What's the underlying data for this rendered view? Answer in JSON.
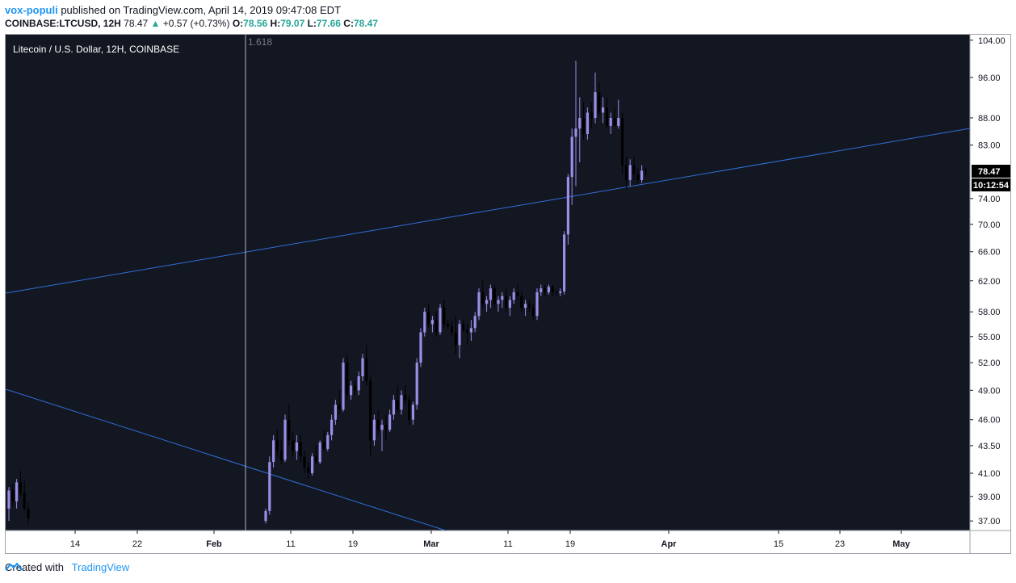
{
  "header": {
    "author": "vox-populi",
    "published_text": " published on TradingView.com, April 14, 2019 09:47:08 EDT",
    "symbol_text": "COINBASE:LTCUSD, 12H",
    "last_value": "78.47",
    "change_arrow": "▲",
    "change_text": "+0.57 (+0.73%)",
    "o_label": "O:",
    "o_value": "78.56",
    "h_label": "H:",
    "h_value": "79.07",
    "l_label": "L:",
    "l_value": "77.66",
    "c_label": "C:",
    "c_value": "78.47"
  },
  "footer": {
    "created_with": "Created with",
    "brand": "TradingView"
  },
  "colors": {
    "pane_bg": "#131722",
    "up_candle": "#9a8ee6",
    "down_candle": "#000000",
    "trendline": "#2f6fd6",
    "price_label_bg": "#000000"
  },
  "chart_data": {
    "type": "candlestick",
    "title": "Litecoin / U.S. Dollar, 12H, COINBASE",
    "y_scale": "log",
    "ylim": [
      36.5,
      104.5
    ],
    "y_ticks": [
      "104.00",
      "96.00",
      "88.00",
      "83.00",
      "78.47",
      "74.00",
      "70.00",
      "66.00",
      "62.00",
      "58.00",
      "55.00",
      "52.00",
      "49.00",
      "46.00",
      "43.50",
      "41.00",
      "39.00",
      "37.00"
    ],
    "last_price_label": "78.47",
    "countdown_label": "10:12:54",
    "x_ticks": [
      "14",
      "22",
      "Feb",
      "11",
      "19",
      "Mar",
      "11",
      "19",
      "Apr",
      "15",
      "23",
      "May"
    ],
    "fib_label": "1.618",
    "series": [
      {
        "values": [
          [
            38.0,
            39.8,
            37.0,
            39.5
          ],
          [
            39.5,
            40.0,
            38.2,
            38.6
          ],
          [
            38.6,
            40.5,
            38.0,
            40.2
          ],
          [
            40.2,
            41.2,
            39.0,
            39.3
          ],
          [
            39.3,
            40.3,
            37.8,
            38.0
          ],
          [
            38.0,
            38.5,
            36.8,
            37.2
          ],
          [
            37.0,
            38.0,
            36.8,
            37.8
          ],
          [
            37.8,
            42.5,
            37.5,
            42.0
          ],
          [
            42.0,
            44.5,
            41.5,
            44.0
          ],
          [
            44.0,
            45.0,
            42.5,
            43.0
          ],
          [
            43.0,
            44.0,
            41.8,
            42.2
          ],
          [
            42.2,
            46.5,
            42.0,
            46.0
          ],
          [
            46.0,
            47.5,
            43.5,
            44.0
          ],
          [
            44.0,
            44.8,
            42.5,
            43.0
          ],
          [
            43.0,
            44.5,
            42.2,
            43.8
          ],
          [
            43.8,
            44.5,
            42.0,
            42.5
          ],
          [
            42.5,
            43.0,
            41.0,
            41.5
          ],
          [
            41.5,
            42.0,
            40.5,
            41.0
          ],
          [
            41.0,
            42.8,
            40.8,
            42.5
          ],
          [
            42.5,
            43.5,
            41.8,
            42.0
          ],
          [
            42.0,
            44.0,
            41.8,
            43.8
          ],
          [
            43.8,
            45.0,
            43.0,
            43.2
          ],
          [
            43.2,
            44.8,
            43.0,
            44.5
          ],
          [
            44.5,
            46.5,
            44.0,
            46.0
          ],
          [
            46.0,
            48.0,
            45.5,
            47.5
          ],
          [
            47.5,
            49.0,
            46.5,
            47.0
          ],
          [
            47.0,
            52.5,
            46.8,
            52.0
          ],
          [
            52.0,
            53.0,
            48.0,
            48.5
          ],
          [
            48.5,
            50.0,
            48.0,
            49.5
          ],
          [
            49.5,
            50.0,
            48.5,
            49.0
          ],
          [
            49.0,
            51.0,
            48.5,
            50.5
          ],
          [
            50.5,
            53.0,
            50.0,
            52.5
          ],
          [
            52.5,
            54.0,
            49.5,
            50.0
          ],
          [
            50.0,
            50.5,
            42.5,
            44.0
          ],
          [
            44.0,
            46.5,
            43.5,
            46.0
          ],
          [
            46.0,
            47.0,
            44.5,
            45.0
          ],
          [
            45.0,
            46.0,
            43.0,
            45.5
          ],
          [
            45.5,
            46.5,
            44.0,
            45.0
          ],
          [
            45.0,
            47.0,
            44.8,
            46.5
          ],
          [
            46.5,
            48.5,
            46.0,
            48.0
          ],
          [
            48.0,
            49.5,
            46.8,
            47.0
          ],
          [
            47.0,
            49.0,
            46.5,
            48.5
          ],
          [
            48.5,
            49.5,
            47.5,
            48.0
          ],
          [
            48.0,
            48.5,
            45.5,
            46.0
          ],
          [
            46.0,
            47.8,
            45.5,
            47.5
          ],
          [
            47.5,
            52.5,
            47.0,
            52.0
          ],
          [
            52.0,
            56.0,
            51.5,
            55.5
          ],
          [
            55.5,
            58.5,
            55.0,
            58.0
          ],
          [
            58.0,
            59.0,
            56.0,
            56.5
          ],
          [
            56.5,
            57.5,
            55.5,
            57.0
          ],
          [
            57.0,
            58.0,
            55.0,
            55.5
          ],
          [
            55.5,
            59.0,
            55.2,
            58.5
          ],
          [
            58.5,
            59.5,
            56.0,
            56.5
          ],
          [
            56.5,
            57.0,
            55.8,
            56.2
          ],
          [
            56.2,
            57.0,
            55.0,
            55.5
          ],
          [
            55.5,
            57.5,
            53.0,
            54.0
          ],
          [
            54.0,
            57.0,
            52.5,
            56.5
          ],
          [
            56.5,
            57.0,
            55.5,
            55.8
          ],
          [
            55.8,
            56.5,
            54.0,
            55.5
          ],
          [
            55.5,
            57.0,
            54.5,
            56.0
          ],
          [
            56.0,
            58.0,
            55.5,
            57.5
          ],
          [
            57.5,
            61.0,
            57.0,
            60.5
          ],
          [
            60.5,
            62.0,
            58.5,
            59.0
          ],
          [
            59.0,
            60.0,
            58.0,
            59.5
          ],
          [
            59.5,
            61.5,
            58.5,
            61.0
          ],
          [
            61.0,
            61.5,
            58.5,
            59.0
          ],
          [
            59.0,
            60.0,
            58.0,
            59.5
          ],
          [
            59.5,
            60.5,
            58.5,
            60.0
          ],
          [
            60.0,
            61.0,
            58.0,
            58.5
          ],
          [
            58.5,
            60.0,
            57.5,
            59.5
          ],
          [
            59.5,
            61.0,
            59.0,
            60.5
          ],
          [
            60.5,
            61.5,
            59.5,
            60.0
          ],
          [
            60.0,
            60.5,
            58.0,
            58.5
          ],
          [
            58.5,
            59.5,
            57.5,
            59.0
          ],
          [
            59.0,
            59.5,
            58.0,
            58.5
          ],
          [
            58.5,
            59.0,
            57.0,
            57.5
          ],
          [
            57.5,
            61.0,
            57.0,
            60.5
          ],
          [
            60.5,
            61.5,
            60.0,
            61.0
          ],
          [
            61.0,
            61.5,
            60.0,
            60.5
          ],
          [
            60.5,
            61.5,
            60.2,
            61.2
          ],
          [
            61.2,
            61.5,
            60.0,
            60.5
          ],
          [
            60.5,
            60.8,
            60.0,
            60.4
          ],
          [
            60.4,
            61.0,
            60.0,
            60.6
          ],
          [
            60.6,
            69.0,
            60.2,
            68.5
          ],
          [
            68.5,
            78.0,
            67.0,
            77.5
          ],
          [
            77.5,
            86.0,
            73.0,
            84.5
          ],
          [
            84.5,
            99.5,
            76.0,
            86.0
          ],
          [
            86.0,
            92.0,
            80.0,
            88.0
          ],
          [
            88.0,
            91.0,
            84.0,
            85.0
          ],
          [
            85.0,
            90.0,
            84.0,
            89.0
          ],
          [
            89.0,
            91.0,
            86.0,
            88.0
          ],
          [
            88.0,
            97.0,
            87.0,
            93.0
          ],
          [
            93.0,
            95.0,
            88.5,
            89.0
          ],
          [
            89.0,
            92.0,
            87.0,
            90.0
          ],
          [
            90.0,
            92.0,
            86.0,
            86.5
          ],
          [
            86.5,
            89.0,
            85.0,
            88.0
          ],
          [
            88.0,
            90.0,
            87.0,
            86.5
          ],
          [
            86.5,
            91.5,
            86.0,
            88.0
          ],
          [
            88.0,
            89.0,
            78.0,
            79.5
          ],
          [
            79.5,
            81.0,
            75.5,
            77.0
          ],
          [
            77.0,
            80.5,
            76.0,
            79.5
          ],
          [
            79.5,
            81.0,
            77.0,
            78.0
          ],
          [
            78.0,
            79.0,
            76.5,
            77.0
          ],
          [
            77.0,
            79.5,
            76.5,
            78.56
          ],
          [
            78.56,
            79.07,
            77.66,
            78.47
          ]
        ]
      }
    ]
  }
}
